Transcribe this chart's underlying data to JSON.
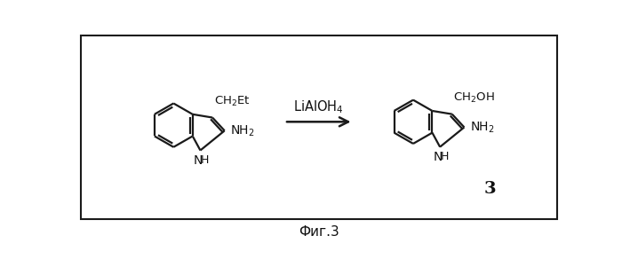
{
  "title": "Фиг.3",
  "reagent": "LiAlOH$_4$",
  "compound_number": "3",
  "reactant_sub": "CH$_2$Et",
  "reactant_amine": "NH$_2$",
  "product_sub": "CH$_2$OH",
  "product_amine": "NH$_2$",
  "nh_label": "NH",
  "h_label": "H",
  "bg_color": "#ffffff",
  "border_color": "#1a1a1a",
  "line_color": "#1a1a1a",
  "text_color": "#111111",
  "figsize": [
    7.0,
    3.1
  ],
  "dpi": 100,
  "lw": 1.6
}
